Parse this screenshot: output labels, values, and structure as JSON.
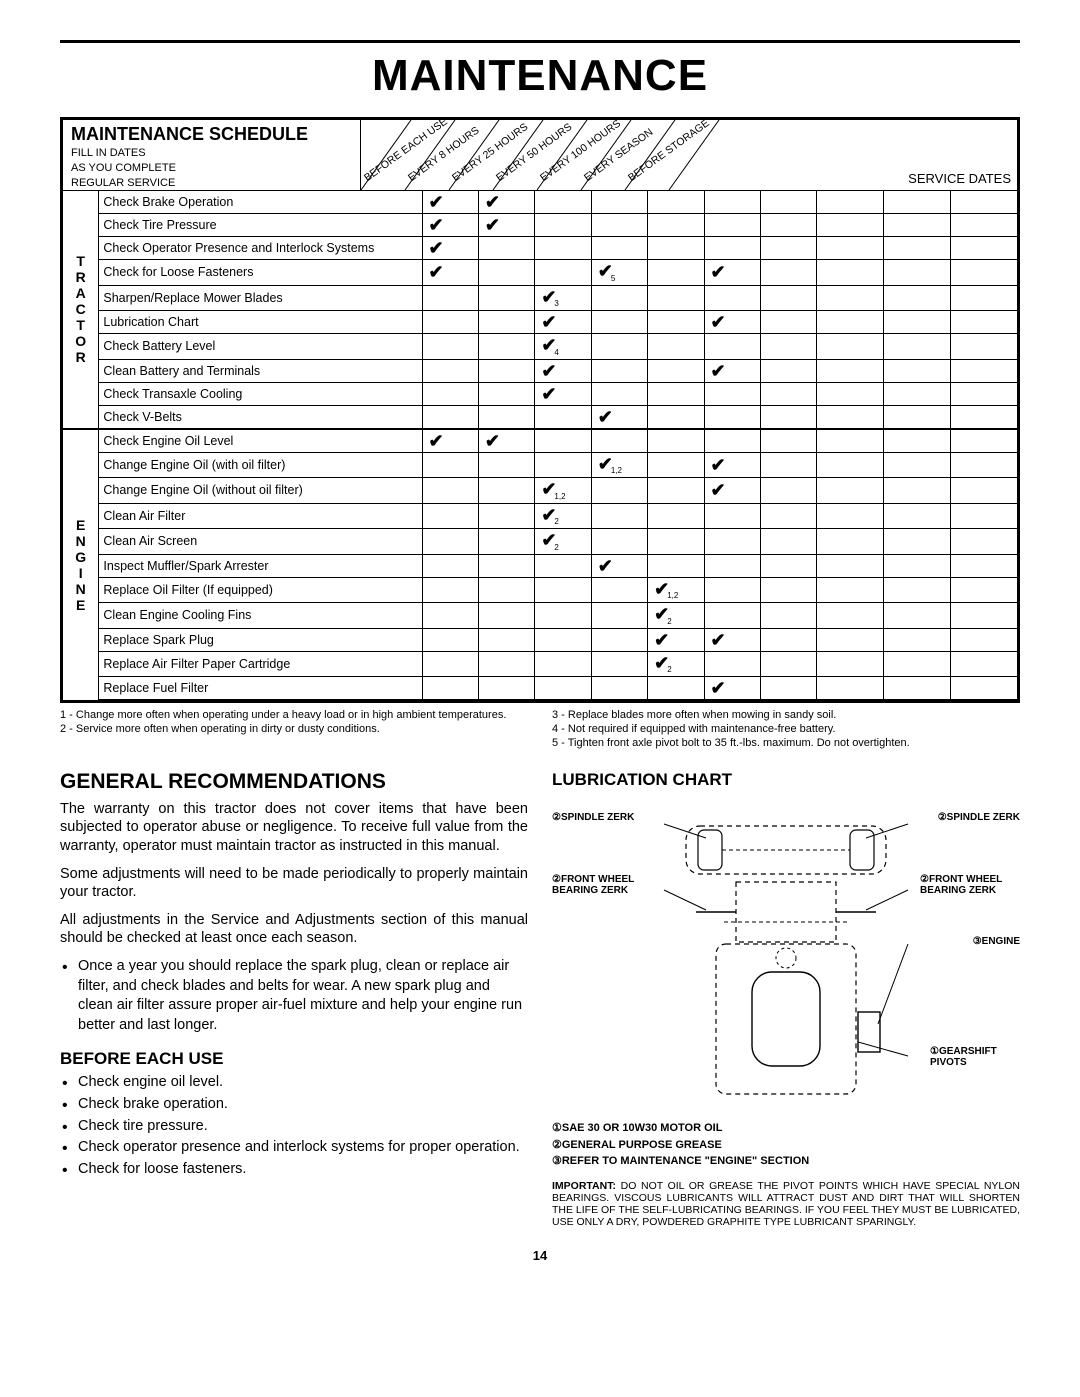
{
  "title": "MAINTENANCE",
  "schedule": {
    "heading": "MAINTENANCE SCHEDULE",
    "sub1": "FILL IN DATES",
    "sub2": "AS YOU COMPLETE",
    "sub3": "REGULAR SERVICE",
    "columns": [
      "BEFORE EACH USE",
      "EVERY 8 HOURS",
      "EVERY 25 HOURS",
      "EVERY 50 HOURS",
      "EVERY 100 HOURS",
      "EVERY SEASON",
      "BEFORE STORAGE"
    ],
    "service_dates": "SERVICE DATES",
    "groups": [
      {
        "label": "TRACTOR",
        "rows": [
          {
            "task": "Check Brake Operation",
            "marks": [
              "✔",
              "✔",
              "",
              "",
              "",
              "",
              ""
            ]
          },
          {
            "task": "Check Tire Pressure",
            "marks": [
              "✔",
              "✔",
              "",
              "",
              "",
              "",
              ""
            ]
          },
          {
            "task": "Check Operator Presence and Interlock Systems",
            "marks": [
              "✔",
              "",
              "",
              "",
              "",
              "",
              ""
            ]
          },
          {
            "task": "Check for Loose Fasteners",
            "marks": [
              "✔",
              "",
              "",
              "✔",
              "",
              "✔",
              ""
            ],
            "subs": [
              "",
              "",
              "",
              "5",
              "",
              "",
              ""
            ]
          },
          {
            "task": "Sharpen/Replace Mower Blades",
            "marks": [
              "",
              "",
              "✔",
              "",
              "",
              "",
              ""
            ],
            "subs": [
              "",
              "",
              "3",
              "",
              "",
              "",
              ""
            ]
          },
          {
            "task": "Lubrication Chart",
            "marks": [
              "",
              "",
              "✔",
              "",
              "",
              "✔",
              ""
            ]
          },
          {
            "task": "Check Battery Level",
            "marks": [
              "",
              "",
              "✔",
              "",
              "",
              "",
              ""
            ],
            "subs": [
              "",
              "",
              "4",
              "",
              "",
              "",
              ""
            ]
          },
          {
            "task": "Clean Battery and Terminals",
            "marks": [
              "",
              "",
              "✔",
              "",
              "",
              "✔",
              ""
            ]
          },
          {
            "task": "Check Transaxle Cooling",
            "marks": [
              "",
              "",
              "✔",
              "",
              "",
              "",
              ""
            ]
          },
          {
            "task": "Check V-Belts",
            "marks": [
              "",
              "",
              "",
              "✔",
              "",
              "",
              ""
            ]
          }
        ]
      },
      {
        "label": "ENGINE",
        "rows": [
          {
            "task": "Check Engine Oil Level",
            "marks": [
              "✔",
              "✔",
              "",
              "",
              "",
              "",
              ""
            ]
          },
          {
            "task": "Change Engine Oil (with oil filter)",
            "marks": [
              "",
              "",
              "",
              "✔",
              "",
              "✔",
              ""
            ],
            "subs": [
              "",
              "",
              "",
              "1,2",
              "",
              "",
              ""
            ]
          },
          {
            "task": "Change Engine Oil (without oil filter)",
            "marks": [
              "",
              "",
              "✔",
              "",
              "",
              "✔",
              ""
            ],
            "subs": [
              "",
              "",
              "1,2",
              "",
              "",
              "",
              ""
            ]
          },
          {
            "task": "Clean Air Filter",
            "marks": [
              "",
              "",
              "✔",
              "",
              "",
              "",
              ""
            ],
            "subs": [
              "",
              "",
              "2",
              "",
              "",
              "",
              ""
            ]
          },
          {
            "task": "Clean Air Screen",
            "marks": [
              "",
              "",
              "✔",
              "",
              "",
              "",
              ""
            ],
            "subs": [
              "",
              "",
              "2",
              "",
              "",
              "",
              ""
            ]
          },
          {
            "task": "Inspect Muffler/Spark Arrester",
            "marks": [
              "",
              "",
              "",
              "✔",
              "",
              "",
              ""
            ]
          },
          {
            "task": "Replace Oil Filter (If equipped)",
            "marks": [
              "",
              "",
              "",
              "",
              "✔",
              "",
              ""
            ],
            "subs": [
              "",
              "",
              "",
              "",
              "1,2",
              "",
              ""
            ]
          },
          {
            "task": "Clean Engine Cooling Fins",
            "marks": [
              "",
              "",
              "",
              "",
              "✔",
              "",
              ""
            ],
            "subs": [
              "",
              "",
              "",
              "",
              "2",
              "",
              ""
            ]
          },
          {
            "task": "Replace Spark Plug",
            "marks": [
              "",
              "",
              "",
              "",
              "✔",
              "✔",
              ""
            ]
          },
          {
            "task": "Replace Air Filter Paper Cartridge",
            "marks": [
              "",
              "",
              "",
              "",
              "✔",
              "",
              ""
            ],
            "subs": [
              "",
              "",
              "",
              "",
              "2",
              "",
              ""
            ]
          },
          {
            "task": "Replace Fuel Filter",
            "marks": [
              "",
              "",
              "",
              "",
              "",
              "✔",
              ""
            ]
          }
        ]
      }
    ]
  },
  "footnotes_left": [
    "1 - Change more often when operating under a heavy load or in high ambient temperatures.",
    "2 - Service more often when operating in dirty or dusty conditions."
  ],
  "footnotes_right": [
    "3 - Replace blades more often when mowing in sandy soil.",
    "4 - Not required if equipped with maintenance-free battery.",
    "5 - Tighten front axle pivot bolt to 35 ft.-lbs. maximum. Do not overtighten."
  ],
  "gen_rec": {
    "heading": "GENERAL RECOMMENDATIONS",
    "p1": "The warranty on this tractor does not cover items that have been subjected to operator abuse or negligence. To receive full value from the warranty, operator must maintain tractor as instructed in this manual.",
    "p2": "Some adjustments will need to be made periodically to properly maintain your tractor.",
    "p3": "All adjustments in the Service and Adjustments section of this manual should be checked at least once each season.",
    "b1": "Once a year you should replace the spark plug, clean or replace air filter, and check blades and belts for wear. A new spark plug and clean air filter assure proper air-fuel mixture and help your engine run better and last longer."
  },
  "before_use": {
    "heading": "BEFORE EACH USE",
    "items": [
      "Check engine oil level.",
      "Check brake operation.",
      "Check tire pressure.",
      "Check operator presence and interlock systems for proper operation.",
      "Check for loose fasteners."
    ]
  },
  "lube": {
    "heading": "LUBRICATION CHART",
    "labels": {
      "spindle_l": "②SPINDLE ZERK",
      "spindle_r": "②SPINDLE ZERK",
      "wheel_l": "②FRONT WHEEL BEARING ZERK",
      "wheel_r": "②FRONT WHEEL BEARING ZERK",
      "engine": "③ENGINE",
      "gearshift": "①GEARSHIFT PIVOTS"
    },
    "legend": [
      "①SAE 30 OR 10W30 MOTOR OIL",
      "②GENERAL PURPOSE GREASE",
      "③REFER TO MAINTENANCE \"ENGINE\" SECTION"
    ],
    "important_label": "IMPORTANT:",
    "important": "DO NOT OIL OR GREASE THE PIVOT POINTS WHICH HAVE SPECIAL NYLON BEARINGS. VISCOUS LUBRICANTS WILL ATTRACT DUST AND DIRT THAT WILL SHORTEN THE LIFE OF THE SELF-LUBRICATING BEARINGS. IF YOU FEEL THEY MUST BE LUBRICATED, USE ONLY A DRY, POWDERED GRAPHITE TYPE LUBRICANT SPARINGLY."
  },
  "page_number": "14"
}
